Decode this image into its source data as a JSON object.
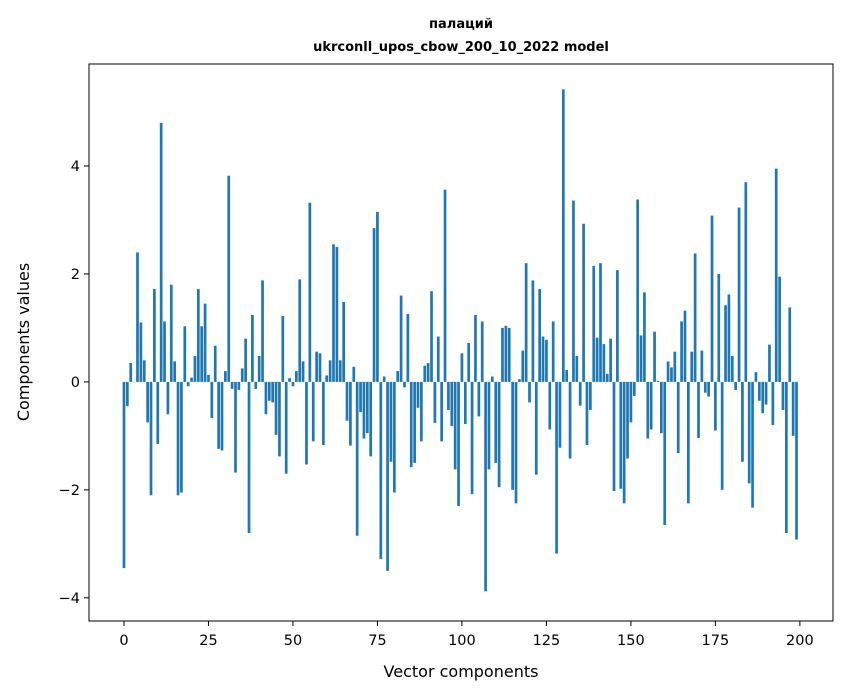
{
  "chart_data": {
    "type": "bar",
    "title_line1": "палаций",
    "title_line2": "ukrconll_upos_cbow_200_10_2022 model",
    "xlabel": "Vector components",
    "ylabel": "Components values",
    "xlim": [
      -10.35,
      209.8
    ],
    "ylim": [
      -4.43,
      5.89
    ],
    "xticks": [
      0,
      25,
      50,
      75,
      100,
      125,
      150,
      175,
      200
    ],
    "xtick_labels": [
      "0",
      "25",
      "50",
      "75",
      "100",
      "125",
      "150",
      "175",
      "200"
    ],
    "yticks": [
      -4,
      -2,
      0,
      2,
      4
    ],
    "ytick_labels": [
      "−4",
      "−2",
      "0",
      "2",
      "4"
    ],
    "grid": false,
    "color": "#1f77b4",
    "values": [
      -3.45,
      -0.45,
      0.35,
      0.0,
      2.4,
      1.1,
      0.4,
      -0.75,
      -2.1,
      1.72,
      -1.15,
      4.8,
      1.12,
      -0.6,
      1.8,
      0.38,
      -2.1,
      -2.05,
      1.03,
      -0.08,
      0.08,
      0.48,
      1.72,
      1.03,
      1.45,
      0.13,
      -0.67,
      0.67,
      -1.24,
      -1.27,
      0.2,
      3.82,
      -0.13,
      -1.68,
      -0.15,
      0.25,
      0.8,
      -2.8,
      1.24,
      -0.13,
      0.48,
      1.88,
      -0.6,
      -0.35,
      -0.38,
      -0.98,
      -1.38,
      1.22,
      -1.7,
      0.07,
      -0.08,
      0.2,
      1.9,
      0.38,
      -1.53,
      3.32,
      -1.1,
      0.56,
      0.53,
      -1.17,
      0.12,
      0.4,
      2.55,
      2.5,
      0.4,
      1.48,
      -0.72,
      -1.18,
      0.28,
      -2.85,
      -0.56,
      -1.05,
      -0.95,
      -1.38,
      2.85,
      3.15,
      -3.28,
      0.1,
      -3.5,
      -1.48,
      -2.05,
      0.2,
      1.6,
      -0.1,
      1.26,
      -1.58,
      -1.5,
      -0.48,
      -1.1,
      0.3,
      0.35,
      1.68,
      -0.76,
      0.84,
      -1.1,
      3.56,
      -0.52,
      -0.82,
      -1.62,
      -2.3,
      0.53,
      -0.78,
      0.72,
      -2.08,
      1.24,
      -0.64,
      1.12,
      -3.88,
      -1.62,
      0.1,
      -1.5,
      -1.95,
      1.0,
      1.04,
      1.0,
      -2.0,
      -2.25,
      0.05,
      0.58,
      2.2,
      -0.38,
      1.88,
      -1.72,
      1.72,
      0.84,
      0.78,
      -0.88,
      1.12,
      -3.18,
      -1.22,
      5.42,
      0.22,
      -1.42,
      3.36,
      0.48,
      -0.44,
      2.93,
      -1.17,
      -0.52,
      2.15,
      0.82,
      2.2,
      0.7,
      0.15,
      0.8,
      -2.02,
      2.07,
      -1.98,
      -2.25,
      -1.42,
      -0.75,
      -0.26,
      3.38,
      0.86,
      1.66,
      -1.05,
      -0.88,
      0.93,
      0.02,
      -0.95,
      -2.65,
      0.38,
      0.27,
      0.56,
      -1.32,
      1.12,
      1.32,
      -2.25,
      0.56,
      2.38,
      -1.04,
      0.58,
      -0.2,
      -0.27,
      3.08,
      -0.9,
      2.0,
      -2.0,
      1.42,
      1.62,
      0.48,
      -0.15,
      3.23,
      -1.48,
      3.7,
      -1.88,
      -2.33,
      0.18,
      -0.35,
      -0.58,
      -0.42,
      0.69,
      -0.8,
      3.95,
      1.95,
      -0.52,
      -2.8,
      1.38,
      -1.0,
      -2.92
    ]
  }
}
